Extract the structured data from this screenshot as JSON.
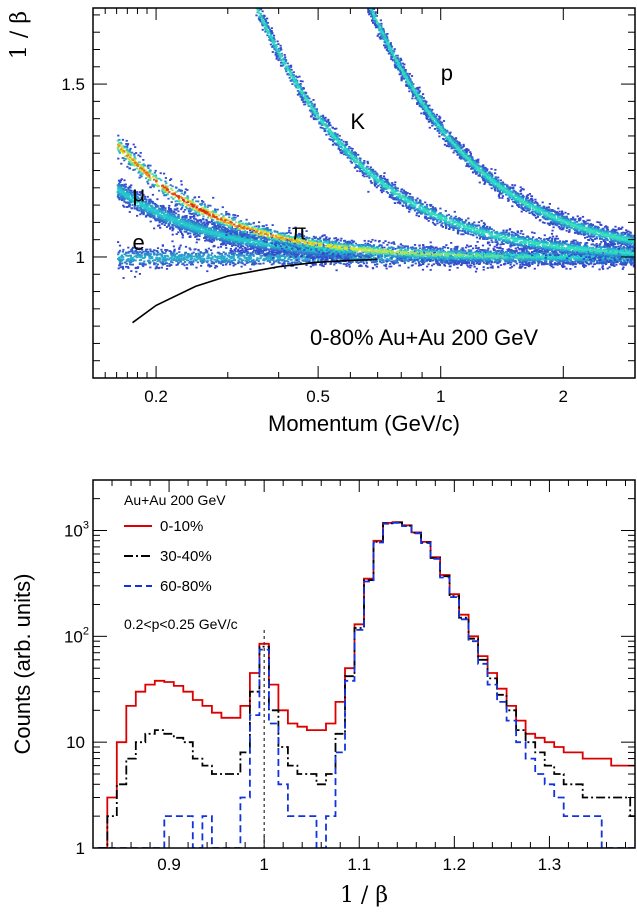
{
  "chart_data": [
    {
      "type": "heatmap",
      "xlabel": "Momentum (GeV/c)",
      "ylabel": "1 / β",
      "xscale": "log",
      "xlim": [
        0.14,
        3.0
      ],
      "ylim": [
        0.65,
        1.72
      ],
      "x_ticks": [
        {
          "value": 0.2,
          "label": "0.2"
        },
        {
          "value": 0.5,
          "label": "0.5"
        },
        {
          "value": 1,
          "label": "1"
        },
        {
          "value": 2,
          "label": "2"
        }
      ],
      "y_ticks": [
        {
          "value": 1,
          "label": "1"
        },
        {
          "value": 1.5,
          "label": "1.5"
        }
      ],
      "annotation": "0-80% Au+Au 200 GeV",
      "particle_labels": [
        {
          "label": "p",
          "x": 1.0,
          "y": 1.51
        },
        {
          "label": "K",
          "x": 0.6,
          "y": 1.37
        },
        {
          "label": "μ",
          "x": 0.175,
          "y": 1.16
        },
        {
          "label": "π",
          "x": 0.43,
          "y": 1.05
        },
        {
          "label": "e",
          "x": 0.175,
          "y": 1.02
        }
      ],
      "bands": [
        {
          "name": "e",
          "mass": 0.000511,
          "p_range": [
            0.16,
            3.0
          ]
        },
        {
          "name": "μ",
          "mass": 0.1057,
          "p_range": [
            0.16,
            0.6
          ]
        },
        {
          "name": "π",
          "mass": 0.1396,
          "p_range": [
            0.16,
            3.0
          ]
        },
        {
          "name": "K",
          "mass": 0.4937,
          "p_range": [
            0.35,
            3.0
          ]
        },
        {
          "name": "p",
          "mass": 0.938,
          "p_range": [
            0.65,
            3.0
          ]
        }
      ],
      "colors": {
        "low": "#3344cc",
        "mid": "#22ddcc",
        "high": "#dd1111"
      },
      "curve": {
        "color": "#000000",
        "points": [
          [
            0.175,
            0.81
          ],
          [
            0.2,
            0.86
          ],
          [
            0.25,
            0.915
          ],
          [
            0.3,
            0.945
          ],
          [
            0.4,
            0.972
          ],
          [
            0.5,
            0.985
          ],
          [
            0.6,
            0.99
          ],
          [
            0.7,
            0.993
          ]
        ]
      }
    },
    {
      "type": "line",
      "xlabel": "1 / β",
      "ylabel": "Counts (arb. units)",
      "yscale": "log",
      "xlim": [
        0.82,
        1.39
      ],
      "ylim": [
        1,
        3000
      ],
      "x_ticks": [
        {
          "value": 0.9,
          "label": "0.9"
        },
        {
          "value": 1.0,
          "label": "1"
        },
        {
          "value": 1.1,
          "label": "1.1"
        },
        {
          "value": 1.2,
          "label": "1.2"
        },
        {
          "value": 1.3,
          "label": "1.3"
        }
      ],
      "y_ticks": [
        {
          "value": 1,
          "label": "1",
          "exp": ""
        },
        {
          "value": 10,
          "label": "10",
          "exp": ""
        },
        {
          "value": 100,
          "label": "10",
          "exp": "2"
        },
        {
          "value": 1000,
          "label": "10",
          "exp": "3"
        }
      ],
      "legend_title": "Au+Au 200 GeV",
      "cut_label": "0.2<p<0.25 GeV/c",
      "reference_line_x": 1.0,
      "x": [
        0.83,
        0.84,
        0.85,
        0.86,
        0.87,
        0.88,
        0.89,
        0.9,
        0.91,
        0.92,
        0.93,
        0.94,
        0.95,
        0.96,
        0.97,
        0.98,
        0.99,
        1.0,
        1.01,
        1.02,
        1.03,
        1.04,
        1.05,
        1.06,
        1.07,
        1.08,
        1.09,
        1.1,
        1.11,
        1.12,
        1.13,
        1.14,
        1.15,
        1.16,
        1.17,
        1.18,
        1.19,
        1.2,
        1.21,
        1.22,
        1.23,
        1.24,
        1.25,
        1.26,
        1.27,
        1.28,
        1.29,
        1.3,
        1.31,
        1.32,
        1.33,
        1.34,
        1.35,
        1.36,
        1.37,
        1.38,
        1.39
      ],
      "series": [
        {
          "name": "0-10%",
          "color": "#dd0000",
          "dash": "",
          "values": [
            1,
            3,
            10,
            22,
            30,
            35,
            38,
            37,
            34,
            30,
            25,
            22,
            19,
            17,
            17,
            22,
            45,
            85,
            35,
            20,
            15,
            14,
            13,
            13,
            15,
            24,
            50,
            130,
            350,
            800,
            1180,
            1200,
            1120,
            960,
            780,
            560,
            380,
            250,
            160,
            100,
            65,
            45,
            32,
            22,
            16,
            12,
            11,
            10,
            9,
            8,
            8,
            7,
            7,
            7,
            6,
            6,
            6
          ]
        },
        {
          "name": "30-40%",
          "color": "#000000",
          "dash": "9,3,2,3",
          "values": [
            1,
            2,
            4,
            7,
            10,
            12,
            13,
            12,
            11,
            10,
            7,
            6,
            5,
            5,
            5,
            8,
            30,
            80,
            20,
            9,
            6,
            5,
            5,
            4,
            5,
            12,
            42,
            120,
            340,
            780,
            1170,
            1190,
            1110,
            950,
            770,
            550,
            370,
            240,
            150,
            95,
            60,
            40,
            28,
            20,
            13,
            10,
            8,
            6,
            5,
            4,
            4,
            3,
            3,
            3,
            3,
            3,
            2
          ]
        },
        {
          "name": "60-80%",
          "color": "#1133dd",
          "dash": "7,4",
          "values": [
            1,
            1,
            1,
            1,
            1,
            1,
            1,
            2,
            2,
            2,
            1,
            2,
            1,
            1,
            1,
            3,
            18,
            75,
            15,
            4,
            2,
            2,
            2,
            1,
            2,
            8,
            38,
            115,
            330,
            770,
            1160,
            1180,
            1100,
            940,
            760,
            540,
            360,
            235,
            145,
            90,
            55,
            35,
            24,
            16,
            10,
            7,
            5,
            4,
            3,
            2,
            2,
            2,
            2,
            1,
            1,
            1,
            1
          ]
        }
      ]
    }
  ]
}
